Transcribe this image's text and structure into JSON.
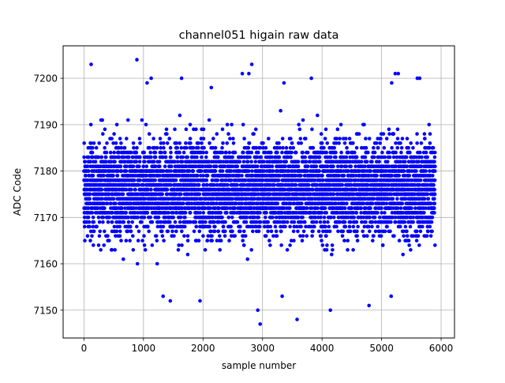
{
  "chart_data": {
    "type": "scatter",
    "title": "channel051 higain raw data",
    "xlabel": "sample number",
    "ylabel": "ADC Code",
    "xlim": [
      -350,
      6225
    ],
    "ylim": [
      7144,
      7207
    ],
    "xticks": [
      0,
      1000,
      2000,
      3000,
      4000,
      5000,
      6000
    ],
    "yticks": [
      7150,
      7160,
      7170,
      7180,
      7190,
      7200
    ],
    "xtick_labels": [
      "0",
      "1000",
      "2000",
      "3000",
      "4000",
      "5000",
      "6000"
    ],
    "ytick_labels": [
      "7150",
      "7160",
      "7170",
      "7180",
      "7190",
      "7200"
    ],
    "grid": true,
    "marker_color": "#0000ff",
    "series": [
      {
        "n_samples": 5900,
        "x_range": [
          0,
          5900
        ],
        "baseline": 7176,
        "dense_band": [
          7160,
          7192
        ],
        "notable_points": [
          {
            "x": 120,
            "y": 7203
          },
          {
            "x": 890,
            "y": 7204
          },
          {
            "x": 1060,
            "y": 7199
          },
          {
            "x": 1130,
            "y": 7200
          },
          {
            "x": 1640,
            "y": 7200
          },
          {
            "x": 2140,
            "y": 7198
          },
          {
            "x": 2660,
            "y": 7201
          },
          {
            "x": 2770,
            "y": 7201
          },
          {
            "x": 2820,
            "y": 7203
          },
          {
            "x": 3360,
            "y": 7199
          },
          {
            "x": 3820,
            "y": 7200
          },
          {
            "x": 5170,
            "y": 7199
          },
          {
            "x": 5230,
            "y": 7201
          },
          {
            "x": 5280,
            "y": 7201
          },
          {
            "x": 5600,
            "y": 7200
          },
          {
            "x": 5640,
            "y": 7200
          },
          {
            "x": 2920,
            "y": 7150
          },
          {
            "x": 2960,
            "y": 7147
          },
          {
            "x": 3580,
            "y": 7148
          },
          {
            "x": 4140,
            "y": 7150
          },
          {
            "x": 1450,
            "y": 7152
          },
          {
            "x": 1950,
            "y": 7152
          },
          {
            "x": 4790,
            "y": 7151
          },
          {
            "x": 1330,
            "y": 7153
          },
          {
            "x": 3330,
            "y": 7153
          },
          {
            "x": 5160,
            "y": 7153
          }
        ]
      }
    ]
  }
}
